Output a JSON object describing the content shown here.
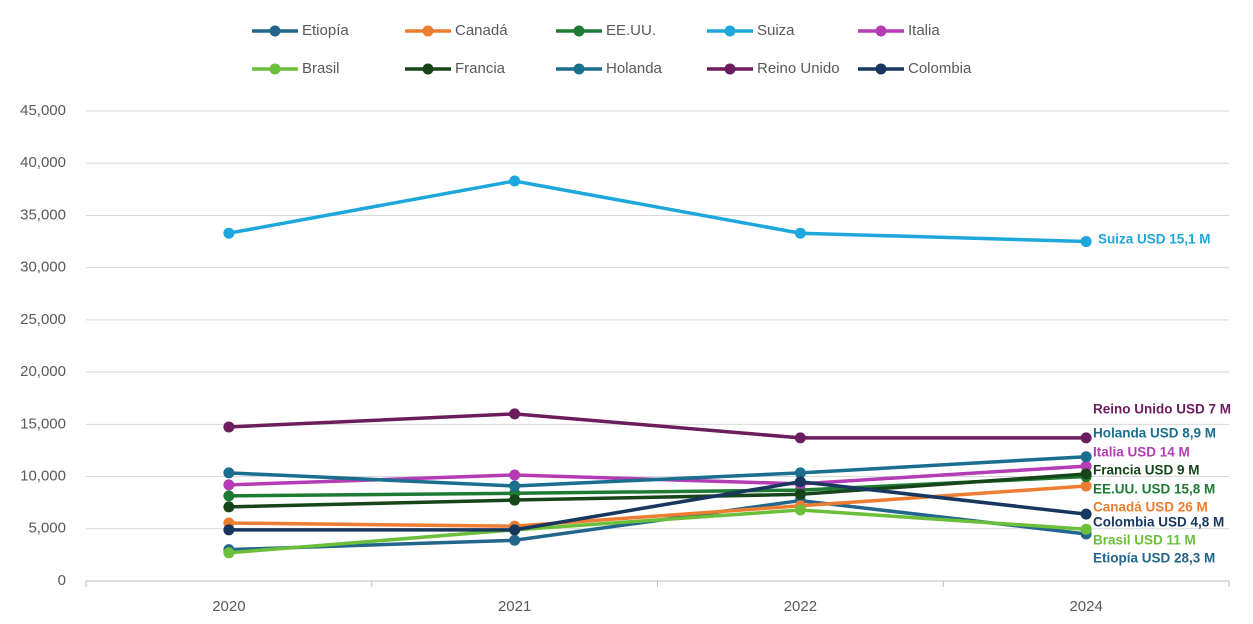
{
  "chart_data": {
    "type": "line",
    "categories": [
      "2020",
      "2021",
      "2022",
      "2024"
    ],
    "ylim": [
      0,
      45000
    ],
    "yticks": [
      0,
      {
        "value": 5000,
        "label": "5,000"
      },
      {
        "value": 10000,
        "label": "10,000"
      },
      {
        "value": 15000,
        "label": "15,000"
      },
      {
        "value": 20000,
        "label": "20,000"
      },
      {
        "value": 25000,
        "label": "25,000"
      },
      {
        "value": 30000,
        "label": "30,000"
      },
      {
        "value": 35000,
        "label": "35,000"
      },
      {
        "value": 40000,
        "label": "40,000"
      },
      {
        "value": 45000,
        "label": "45,000"
      }
    ],
    "grid": true,
    "legend": "top",
    "series": [
      {
        "name": "Etiopía",
        "color": "#22668c",
        "values": [
          3000,
          3900,
          7700,
          4500
        ],
        "label": "Etiopía  USD 28,3 M"
      },
      {
        "name": "Canadá",
        "color": "#ed7d31",
        "values": [
          5550,
          5250,
          7200,
          9100
        ],
        "label": "Canadá  USD 26 M"
      },
      {
        "name": "EE.UU.",
        "color": "#1e7b34",
        "values": [
          8150,
          8400,
          8700,
          10000
        ],
        "label": "EE.UU.  USD 15,8 M"
      },
      {
        "name": "Suiza",
        "color": "#1ea7dc",
        "values": [
          33300,
          38300,
          33300,
          32500
        ],
        "label": "Suiza  USD 15,1 M"
      },
      {
        "name": "Italia",
        "color": "#b43cb4",
        "values": [
          9200,
          10150,
          9300,
          11000
        ],
        "label": "Italia  USD 14 M"
      },
      {
        "name": "Brasil",
        "color": "#6cbf3a",
        "values": [
          2700,
          4900,
          6800,
          4950
        ],
        "label": "Brasil  USD 11 M"
      },
      {
        "name": "Francia",
        "color": "#17451a",
        "values": [
          7100,
          7750,
          8300,
          10250
        ],
        "label": "Francia  USD 9 M"
      },
      {
        "name": "Holanda",
        "color": "#1a6e8e",
        "values": [
          10350,
          9100,
          10350,
          11900
        ],
        "label": "Holanda  USD 8,9 M"
      },
      {
        "name": "Reino Unido",
        "color": "#6b1d5e",
        "values": [
          14750,
          16000,
          13700,
          13700
        ],
        "label": "Reino Unido  USD 7 M"
      },
      {
        "name": "Colombia",
        "color": "#17375e",
        "values": [
          4900,
          4900,
          9500,
          6400
        ],
        "label": "Colombia  USD 4,8 M"
      }
    ]
  }
}
